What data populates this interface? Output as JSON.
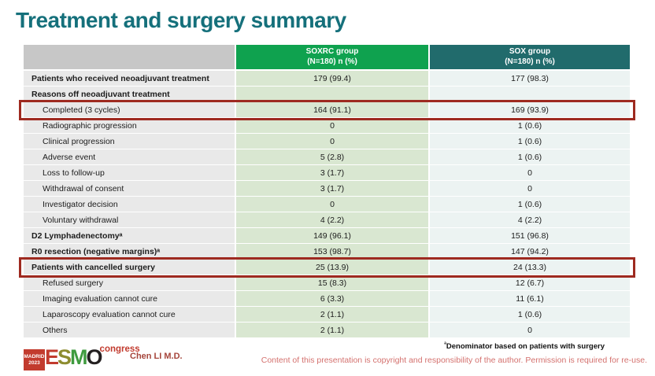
{
  "title": "Treatment and surgery summary",
  "colors": {
    "title_text": "#15707b",
    "soxrc_header_bg": "#0fa24f",
    "sox_header_bg": "#216b6c",
    "label_header_bg": "#c7c7c7",
    "label_cell_bg": "#e9e9e9",
    "soxrc_cell_bg": "#d9e7d1",
    "sox_cell_bg": "#ecf3f2",
    "highlight_border": "#9e2a20",
    "copyright_text": "#d4716e",
    "logo_red": "#c23b2e"
  },
  "table": {
    "header": {
      "soxrc_line1": "SOXRC group",
      "soxrc_line2": "(N=180)  n (%)",
      "sox_line1": "SOX group",
      "sox_line2": "(N=180)  n (%)"
    },
    "rows": [
      {
        "label": "Patients who received neoadjuvant treatment",
        "soxrc": "179 (99.4)",
        "sox": "177 (98.3)"
      },
      {
        "label": "Reasons off neoadjuvant treatment",
        "soxrc": "",
        "sox": ""
      },
      {
        "label": "Completed (3 cycles)",
        "soxrc": "164 (91.1)",
        "sox": "169 (93.9)"
      },
      {
        "label": "Radiographic progression",
        "soxrc": "0",
        "sox": "1 (0.6)"
      },
      {
        "label": "Clinical progression",
        "soxrc": "0",
        "sox": "1 (0.6)"
      },
      {
        "label": "Adverse event",
        "soxrc": "5 (2.8)",
        "sox": "1 (0.6)"
      },
      {
        "label": "Loss to follow-up",
        "soxrc": "3 (1.7)",
        "sox": "0"
      },
      {
        "label": "Withdrawal of consent",
        "soxrc": "3 (1.7)",
        "sox": "0"
      },
      {
        "label": "Investigator decision",
        "soxrc": "0",
        "sox": "1 (0.6)"
      },
      {
        "label": "Voluntary withdrawal",
        "soxrc": "4 (2.2)",
        "sox": "4 (2.2)"
      },
      {
        "label": "D2 Lymphadenectomyᵃ",
        "soxrc": "149 (96.1)",
        "sox": "151 (96.8)"
      },
      {
        "label": "R0 resection (negative margins)ᵃ",
        "soxrc": "153 (98.7)",
        "sox": "147 (94.2)"
      },
      {
        "label": "Patients with cancelled surgery",
        "soxrc": "25 (13.9)",
        "sox": "24 (13.3)"
      },
      {
        "label": "Refused surgery",
        "soxrc": "15 (8.3)",
        "sox": "12 (6.7)"
      },
      {
        "label": "Imaging evaluation cannot cure",
        "soxrc": "6 (3.3)",
        "sox": "11 (6.1)"
      },
      {
        "label": "Laparoscopy evaluation cannot cure",
        "soxrc": "2 (1.1)",
        "sox": "1 (0.6)"
      },
      {
        "label": "Others",
        "soxrc": "2 (1.1)",
        "sox": "0"
      }
    ]
  },
  "footer": {
    "logo": {
      "badge_line1": "MADRID",
      "badge_line2": "2023",
      "letters": [
        "E",
        "S",
        "M",
        "O"
      ],
      "congress": "congress"
    },
    "presenter": "Chen LI M.D.",
    "footnote_marker": "ᵃ",
    "footnote_text": "Denominator based on patients with surgery",
    "copyright": "Content of this presentation is copyright and responsibility of the author. Permission is required for re-use."
  }
}
